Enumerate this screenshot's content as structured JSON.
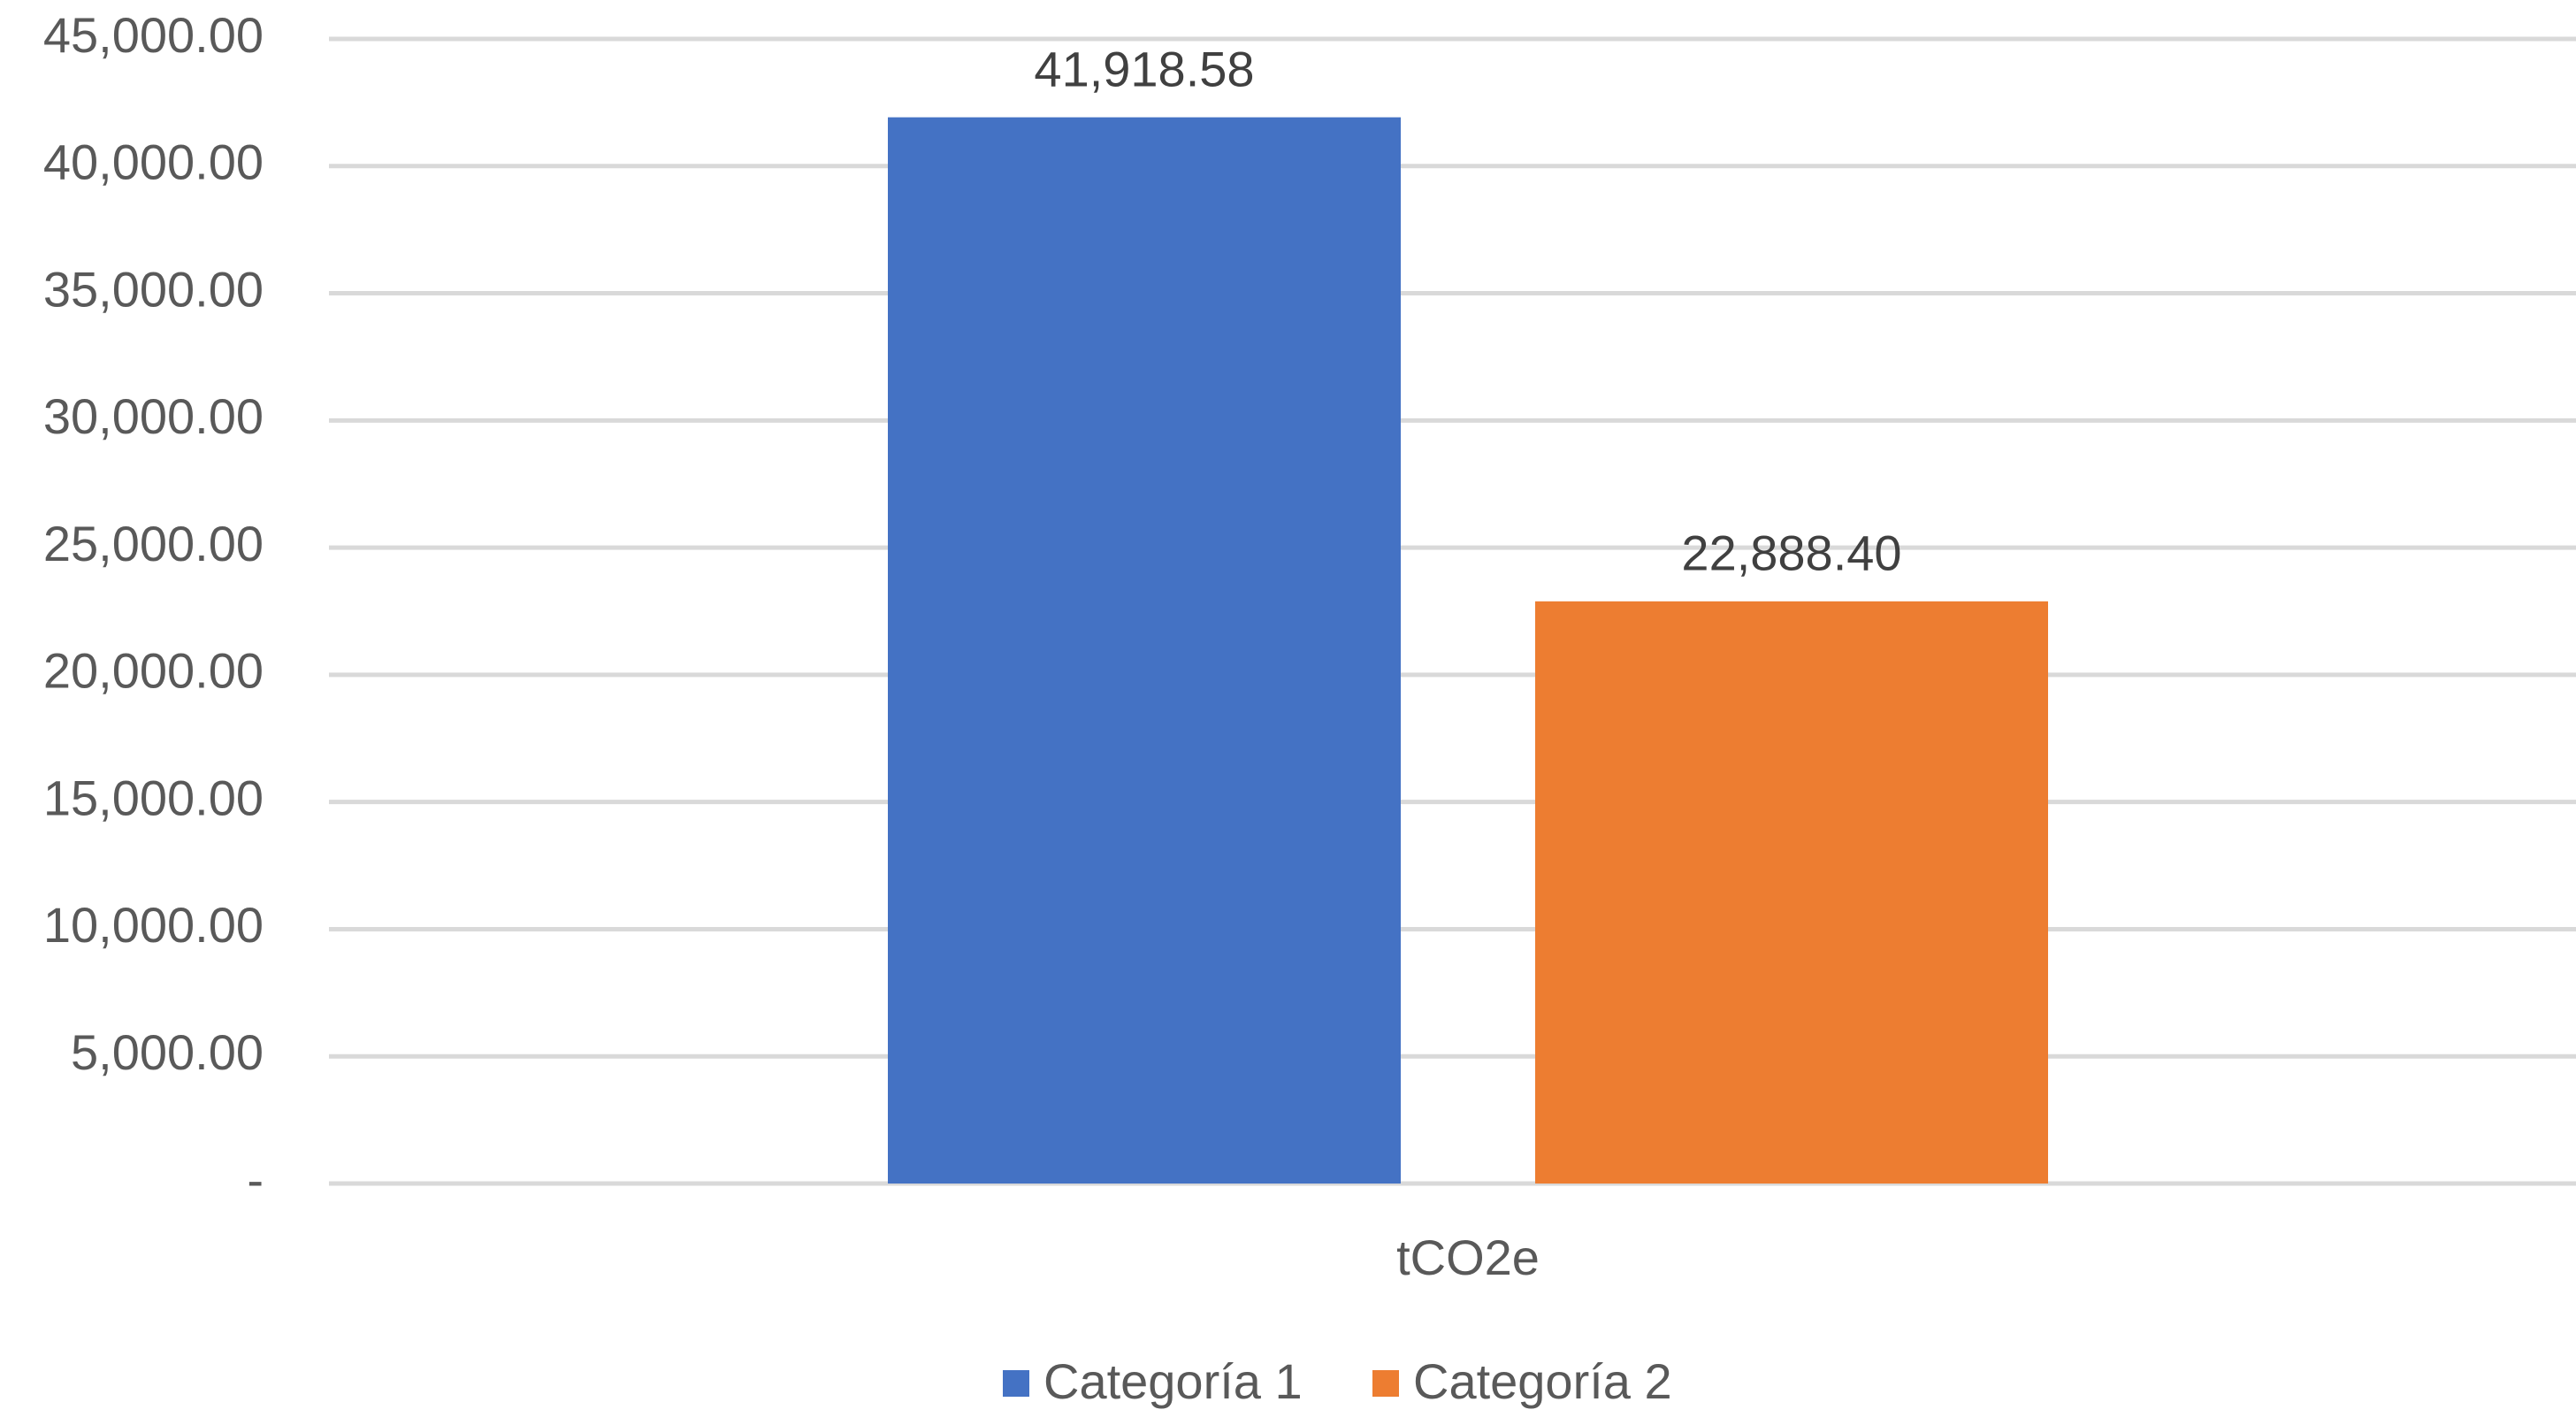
{
  "chart_data": {
    "type": "bar",
    "categories": [
      "tCO2e"
    ],
    "series": [
      {
        "name": "Categoría 1",
        "values": [
          41918.58
        ],
        "value_label": "41,918.58",
        "color": "#4472C4"
      },
      {
        "name": "Categoría 2",
        "values": [
          22888.4
        ],
        "value_label": "22,888.40",
        "color": "#ED7D31"
      }
    ],
    "title": "",
    "xlabel": "",
    "ylabel": "",
    "ylim": [
      0,
      45000
    ],
    "y_ticks": [
      0,
      5000,
      10000,
      15000,
      20000,
      25000,
      30000,
      35000,
      40000,
      45000
    ],
    "y_tick_labels": [
      "-",
      "5,000.00",
      "10,000.00",
      "15,000.00",
      "20,000.00",
      "25,000.00",
      "30,000.00",
      "35,000.00",
      "40,000.00",
      "45,000.00"
    ],
    "grid": true,
    "legend_position": "bottom"
  }
}
